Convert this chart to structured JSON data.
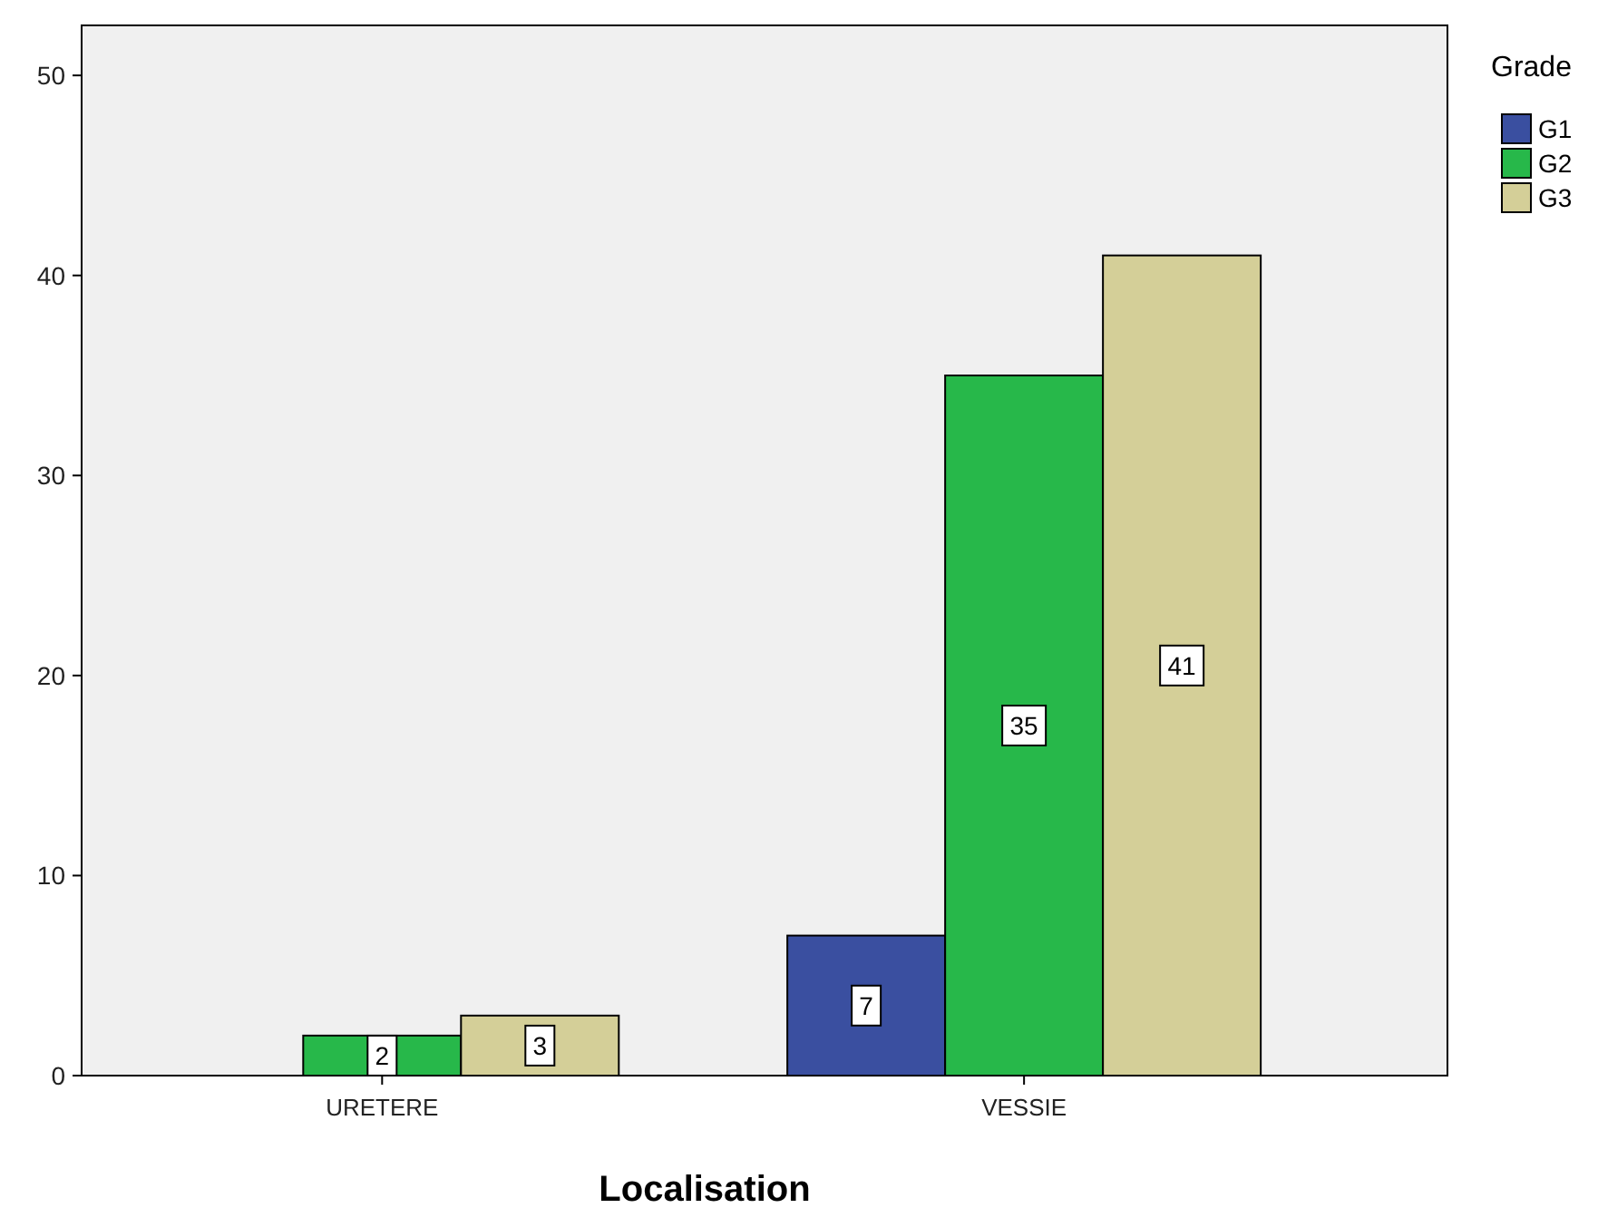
{
  "chart_data": {
    "type": "bar",
    "xlabel": "Localisation",
    "legend_title": "Grade",
    "categories": [
      "URETERE",
      "VESSIE"
    ],
    "series": [
      {
        "name": "G1",
        "color": "#3a4fa0",
        "values": [
          null,
          7
        ]
      },
      {
        "name": "G2",
        "color": "#27b84a",
        "values": [
          2,
          35
        ]
      },
      {
        "name": "G3",
        "color": "#d4cf98",
        "values": [
          3,
          41
        ]
      }
    ],
    "ylim": [
      0,
      52.5
    ],
    "yticks": [
      0,
      10,
      20,
      30,
      40,
      50
    ],
    "data_labels": true,
    "legend": "top right",
    "grid": false
  }
}
